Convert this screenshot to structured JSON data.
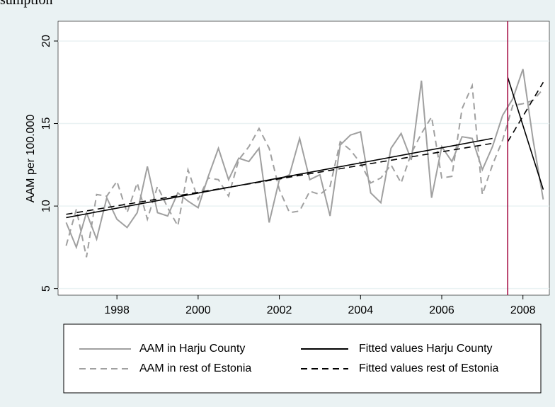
{
  "chart_data": {
    "type": "line",
    "title": "sumption",
    "y_label": "AAM per 100.000",
    "x": [
      1996.75,
      1997,
      1997.25,
      1997.5,
      1997.75,
      1998,
      1998.25,
      1998.5,
      1998.75,
      1999,
      1999.25,
      1999.5,
      1999.75,
      2000,
      2000.25,
      2000.5,
      2000.75,
      2001,
      2001.25,
      2001.5,
      2001.75,
      2002,
      2002.25,
      2002.5,
      2002.75,
      2003,
      2003.25,
      2003.5,
      2003.75,
      2004,
      2004.25,
      2004.5,
      2004.75,
      2005,
      2005.25,
      2005.5,
      2005.75,
      2006,
      2006.25,
      2006.5,
      2006.75,
      2007,
      2007.25,
      2007.5,
      2007.75,
      2008,
      2008.25,
      2008.5
    ],
    "series": [
      {
        "name": "AAM in Harju County",
        "color": "#a0a0a0",
        "dash": false,
        "values": [
          9.0,
          7.5,
          9.6,
          8.0,
          10.5,
          9.2,
          8.7,
          9.6,
          12.4,
          9.6,
          9.4,
          10.8,
          10.3,
          9.9,
          11.8,
          13.5,
          11.6,
          12.9,
          12.7,
          13.5,
          9.0,
          11.6,
          11.9,
          14.1,
          11.6,
          11.9,
          9.4,
          13.7,
          14.3,
          14.5,
          10.8,
          10.2,
          13.5,
          14.4,
          12.8,
          17.6,
          10.5,
          13.6,
          12.7,
          14.2,
          14.1,
          12.2,
          13.6,
          15.5,
          16.5,
          18.3,
          14.0,
          10.4
        ]
      },
      {
        "name": "AAM in rest of Estonia",
        "color": "#a0a0a0",
        "dash": true,
        "values": [
          7.6,
          9.8,
          6.9,
          10.7,
          10.6,
          11.5,
          9.6,
          11.4,
          9.2,
          11.2,
          9.9,
          8.8,
          12.2,
          10.4,
          11.7,
          11.6,
          10.6,
          12.8,
          13.6,
          14.7,
          13.5,
          11.0,
          9.6,
          9.7,
          10.9,
          10.7,
          11.2,
          13.9,
          13.4,
          12.6,
          11.4,
          11.7,
          12.5,
          11.4,
          13.2,
          14.4,
          15.4,
          11.7,
          11.8,
          15.9,
          17.3,
          10.7,
          12.5,
          14.0,
          16.1,
          16.2,
          16.4,
          17.1
        ]
      },
      {
        "name": "Fitted values Harju County",
        "color": "#000000",
        "dash": false,
        "x": [
          1996.75,
          2007.25,
          2007.375,
          2007.625,
          2008.5
        ],
        "values": [
          9.3,
          14.1,
          null,
          17.8,
          11.0
        ]
      },
      {
        "name": "Fitted values rest of Estonia",
        "color": "#000000",
        "dash": true,
        "x": [
          1996.75,
          2007.25,
          2007.375,
          2007.625,
          2008.5
        ],
        "values": [
          9.5,
          13.8,
          null,
          13.9,
          17.5
        ]
      }
    ],
    "xline": 2007.625,
    "xline_color": "#a0003a",
    "xlim": [
      1996.55,
      2008.65
    ],
    "ylim": [
      4.6,
      21.2
    ],
    "xticks": [
      1998,
      2000,
      2002,
      2004,
      2006,
      2008
    ],
    "yticks": [
      5,
      10,
      15,
      20
    ],
    "grid": true
  }
}
